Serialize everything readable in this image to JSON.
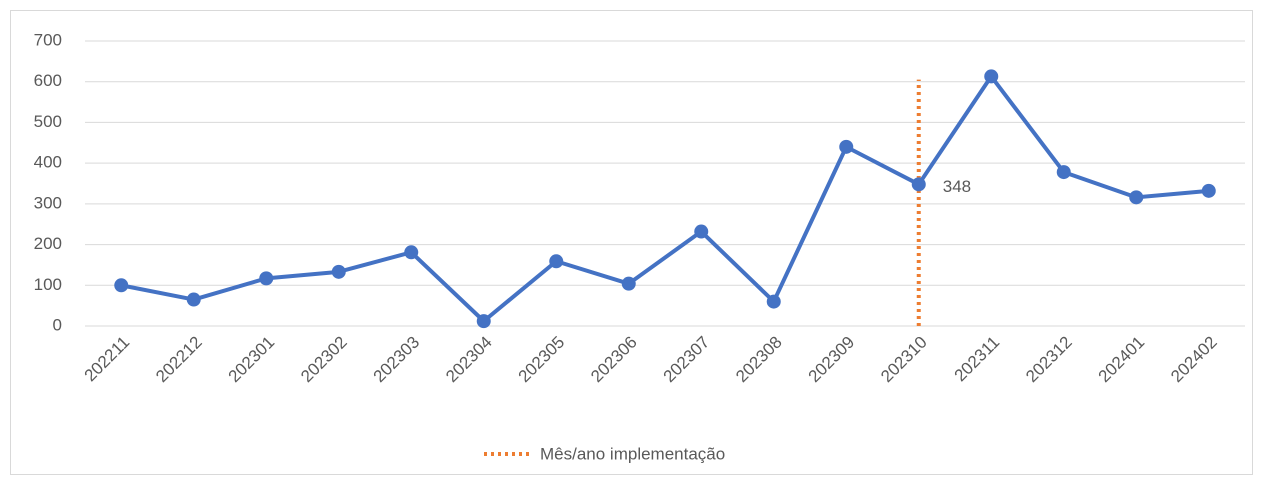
{
  "chart_data": {
    "type": "line",
    "categories": [
      "202211",
      "202212",
      "202301",
      "202302",
      "202303",
      "202304",
      "202305",
      "202306",
      "202307",
      "202308",
      "202309",
      "202310",
      "202311",
      "202312",
      "202401",
      "202402"
    ],
    "series": [
      {
        "color": "#4472c4",
        "values": [
          100,
          65,
          117,
          133,
          181,
          12,
          159,
          104,
          232,
          60,
          440,
          348,
          613,
          378,
          316,
          332
        ]
      }
    ],
    "data_labels": [
      11
    ],
    "markers": [
      {
        "name": "Mês/ano implementação",
        "category": "202310",
        "color": "#ed7d31",
        "y": [
          0,
          605
        ]
      }
    ],
    "ylim": [
      0,
      700
    ],
    "yticks": [
      0,
      100,
      200,
      300,
      400,
      500,
      600,
      700
    ],
    "grid": true
  }
}
